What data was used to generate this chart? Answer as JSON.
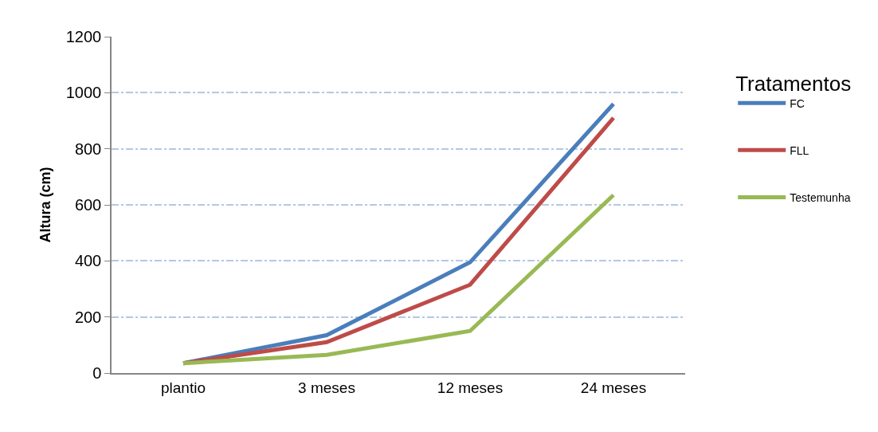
{
  "chart_data": {
    "type": "line",
    "ylabel": "Altura (cm)",
    "legend_title": "Tratamentos",
    "categories": [
      "plantio",
      "3 meses",
      "12 meses",
      "24 meses"
    ],
    "series": [
      {
        "name": "FC",
        "color": "#4a7ebb",
        "values": [
          35,
          135,
          395,
          960
        ]
      },
      {
        "name": "FLL",
        "color": "#be4b48",
        "values": [
          35,
          110,
          315,
          910
        ]
      },
      {
        "name": "Testemunha",
        "color": "#98b954",
        "values": [
          35,
          65,
          150,
          635
        ]
      }
    ],
    "ylim": [
      0,
      1200
    ],
    "yticks": [
      0,
      200,
      400,
      600,
      800,
      1000,
      1200
    ],
    "grid": "y",
    "legend": "right",
    "marker": "none",
    "line_style": "solid"
  }
}
